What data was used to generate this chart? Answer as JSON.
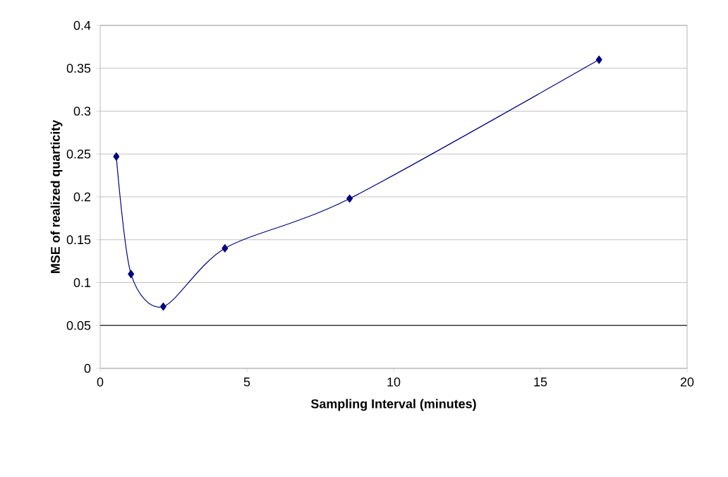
{
  "chart_data": {
    "type": "line",
    "xlabel": "Sampling Interval (minutes)",
    "ylabel": "MSE of realized quarticity",
    "x": [
      0.55,
      1.05,
      2.15,
      4.25,
      8.5,
      17
    ],
    "series": [
      {
        "color": "#000080",
        "values": [
          0.247,
          0.11,
          0.072,
          0.14,
          0.198,
          0.36
        ]
      }
    ],
    "xlim": [
      0,
      20
    ],
    "ylim": [
      0,
      0.4
    ],
    "xticks": [
      0,
      5,
      10,
      15,
      20
    ],
    "yticks": [
      0,
      0.05,
      0.1,
      0.15,
      0.2,
      0.25,
      0.3,
      0.35,
      0.4
    ],
    "grid": "y",
    "marker": "diamond",
    "line_style": "solid",
    "ref_lines": [
      {
        "axis": "y",
        "value": 0.05,
        "color": "#404040"
      }
    ]
  }
}
